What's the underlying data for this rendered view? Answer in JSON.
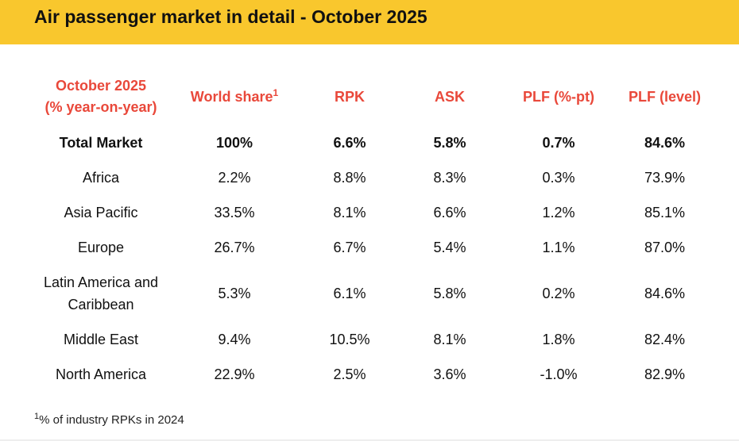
{
  "header": {
    "title": "Air passenger market in detail - October 2025",
    "accent_color": "#f9c72d"
  },
  "table": {
    "header_color": "#e9483a",
    "columns": {
      "region": [
        "October 2025",
        "(% year-on-year)"
      ],
      "share": "World share",
      "share_sup": "1",
      "rpk": "RPK",
      "ask": "ASK",
      "plf_pt": "PLF (%-pt)",
      "plf_level": "PLF (level)"
    },
    "rows": [
      {
        "region": [
          "Total Market"
        ],
        "share": "100%",
        "rpk": "6.6%",
        "ask": "5.8%",
        "plf_pt": "0.7%",
        "plf_level": "84.6%"
      },
      {
        "region": [
          "Africa"
        ],
        "share": "2.2%",
        "rpk": "8.8%",
        "ask": "8.3%",
        "plf_pt": "0.3%",
        "plf_level": "73.9%"
      },
      {
        "region": [
          "Asia Pacific"
        ],
        "share": "33.5%",
        "rpk": "8.1%",
        "ask": "6.6%",
        "plf_pt": "1.2%",
        "plf_level": "85.1%"
      },
      {
        "region": [
          "Europe"
        ],
        "share": "26.7%",
        "rpk": "6.7%",
        "ask": "5.4%",
        "plf_pt": "1.1%",
        "plf_level": "87.0%"
      },
      {
        "region": [
          "Latin America and",
          "Caribbean"
        ],
        "share": "5.3%",
        "rpk": "6.1%",
        "ask": "5.8%",
        "plf_pt": "0.2%",
        "plf_level": "84.6%"
      },
      {
        "region": [
          "Middle East"
        ],
        "share": "9.4%",
        "rpk": "10.5%",
        "ask": "8.1%",
        "plf_pt": "1.8%",
        "plf_level": "82.4%"
      },
      {
        "region": [
          "North America"
        ],
        "share": "22.9%",
        "rpk": "2.5%",
        "ask": "3.6%",
        "plf_pt": "-1.0%",
        "plf_level": "82.9%"
      }
    ]
  },
  "footnote": {
    "marker": "1",
    "text": "% of industry RPKs in 2024"
  }
}
